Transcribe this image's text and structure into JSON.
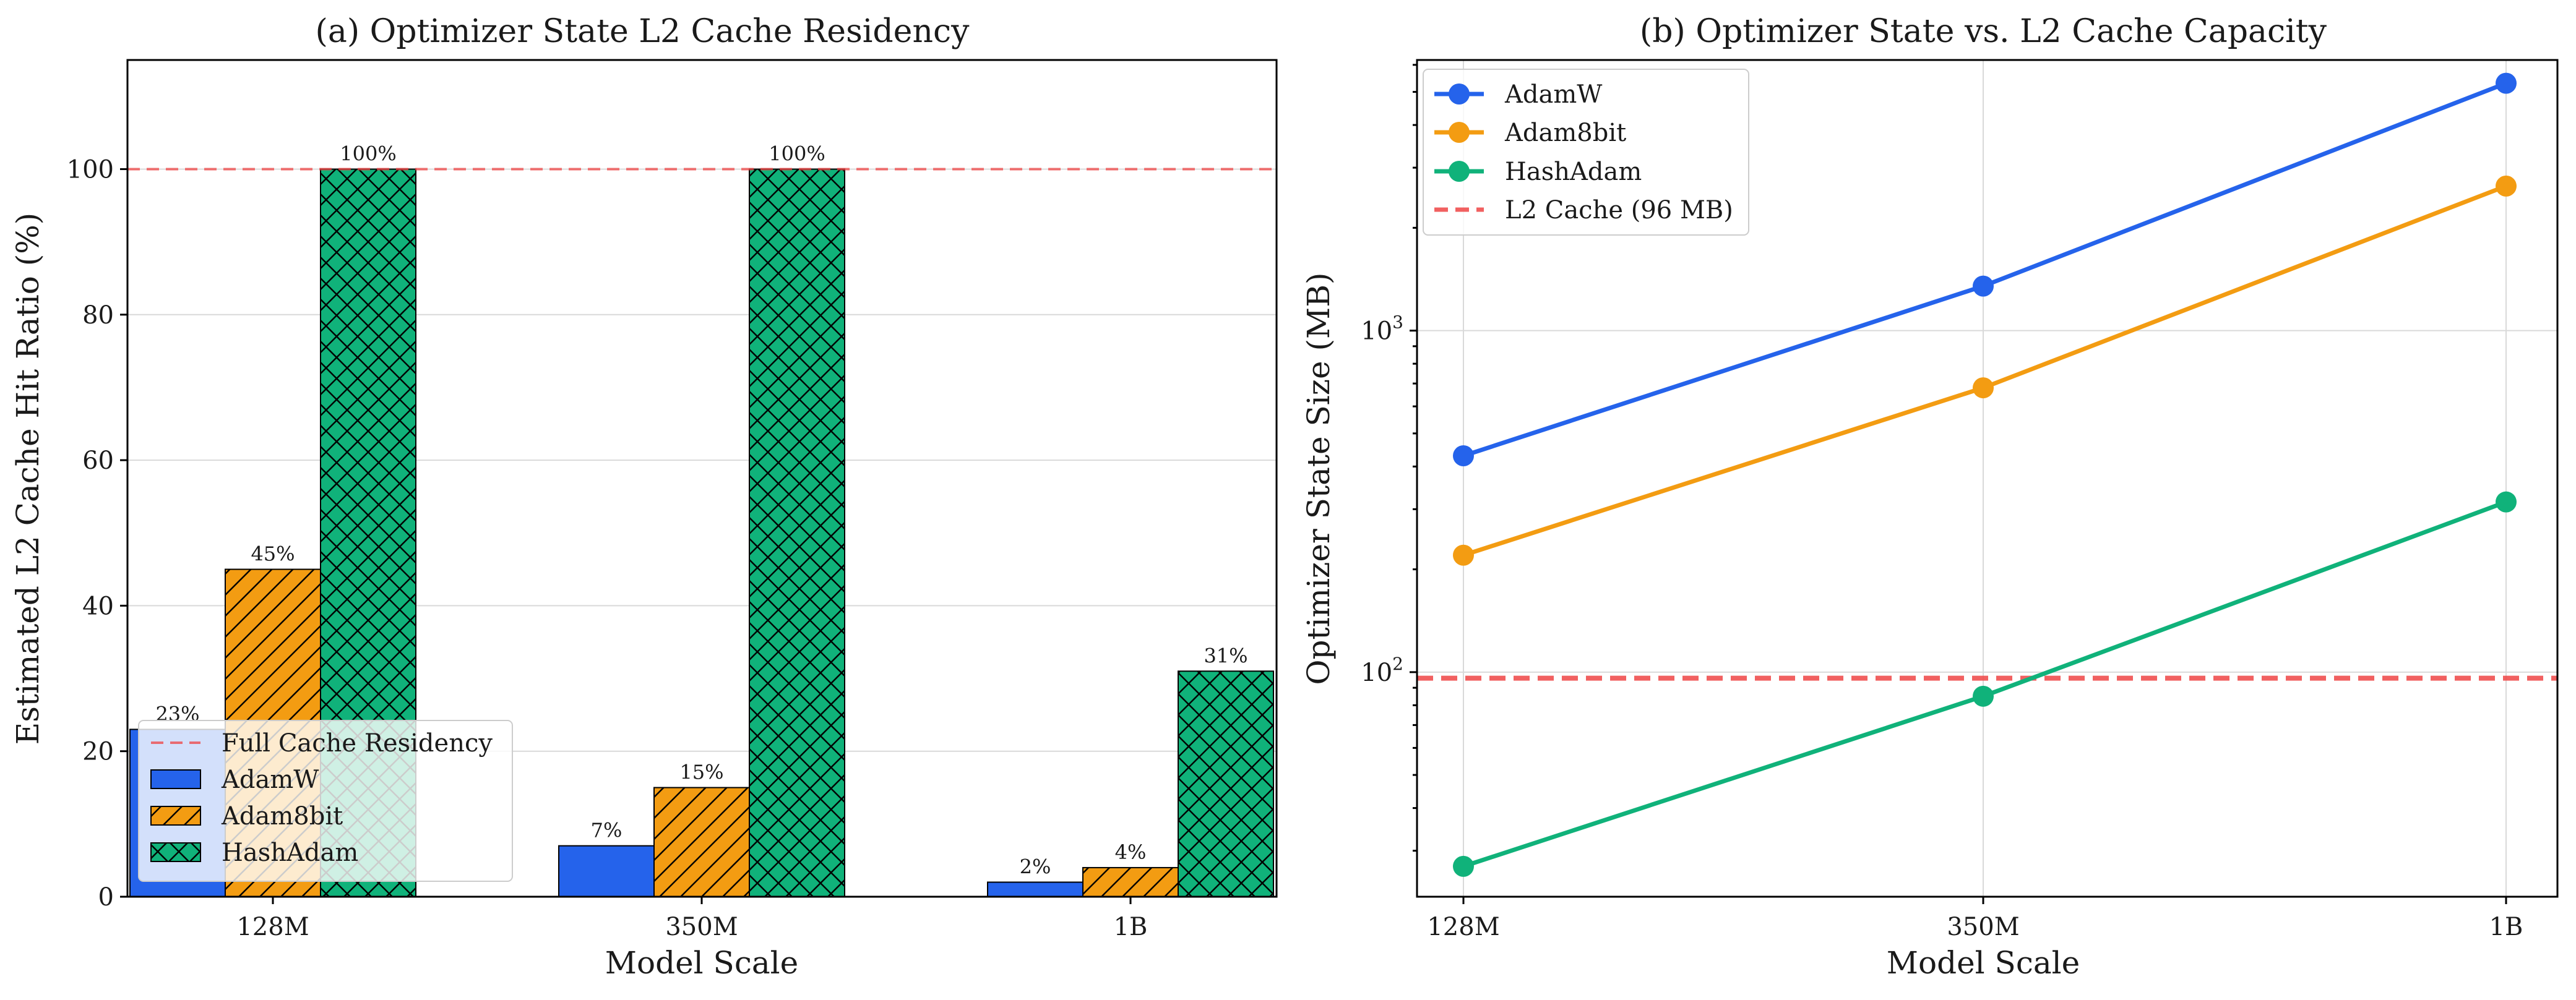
{
  "colors": {
    "adamw": "#2563eb",
    "adam8bit": "#f39c12",
    "hashadam": "#10b27a",
    "reference": "#ef4444"
  },
  "chart_data": [
    {
      "type": "bar",
      "title": "(a) Optimizer State L2 Cache Residency",
      "xlabel": "Model Scale",
      "ylabel": "Estimated L2 Cache Hit Ratio (%)",
      "categories": [
        "128M",
        "350M",
        "1B"
      ],
      "ylim": [
        0,
        115
      ],
      "yticks": [
        0,
        20,
        40,
        60,
        80,
        100
      ],
      "grid": true,
      "series": [
        {
          "name": "AdamW",
          "values": [
            23,
            7,
            2
          ],
          "labels": [
            "23%",
            "7%",
            "2%"
          ],
          "hatch": "none"
        },
        {
          "name": "Adam8bit",
          "values": [
            45,
            15,
            4
          ],
          "labels": [
            "45%",
            "15%",
            "4%"
          ],
          "hatch": "diagonal"
        },
        {
          "name": "HashAdam",
          "values": [
            100,
            100,
            31
          ],
          "labels": [
            "100%",
            "100%",
            "31%"
          ],
          "hatch": "cross"
        }
      ],
      "reference_line": {
        "label": "Full Cache Residency",
        "value": 100,
        "style": "dashed"
      },
      "legend": {
        "position": "lower-left",
        "entries": [
          "Full Cache Residency",
          "AdamW",
          "Adam8bit",
          "HashAdam"
        ]
      }
    },
    {
      "type": "line",
      "title": "(b) Optimizer State vs. L2 Cache Capacity",
      "xlabel": "Model Scale",
      "ylabel": "Optimizer State Size (MB)",
      "yscale": "log",
      "categories": [
        "128M",
        "350M",
        "1B"
      ],
      "ylim": [
        22,
        6200
      ],
      "yticks": [
        {
          "base": "10",
          "exp": "2",
          "value": 100
        },
        {
          "base": "10",
          "exp": "3",
          "value": 1000
        }
      ],
      "grid": true,
      "series": [
        {
          "name": "AdamW",
          "values": [
            430,
            1350,
            5300
          ]
        },
        {
          "name": "Adam8bit",
          "values": [
            220,
            680,
            2650
          ]
        },
        {
          "name": "HashAdam",
          "values": [
            27,
            85,
            315
          ]
        }
      ],
      "reference_line": {
        "label": "L2 Cache (96 MB)",
        "value": 96,
        "style": "dashed"
      },
      "legend": {
        "position": "top-left",
        "entries": [
          "AdamW",
          "Adam8bit",
          "HashAdam",
          "L2 Cache (96 MB)"
        ]
      }
    }
  ]
}
